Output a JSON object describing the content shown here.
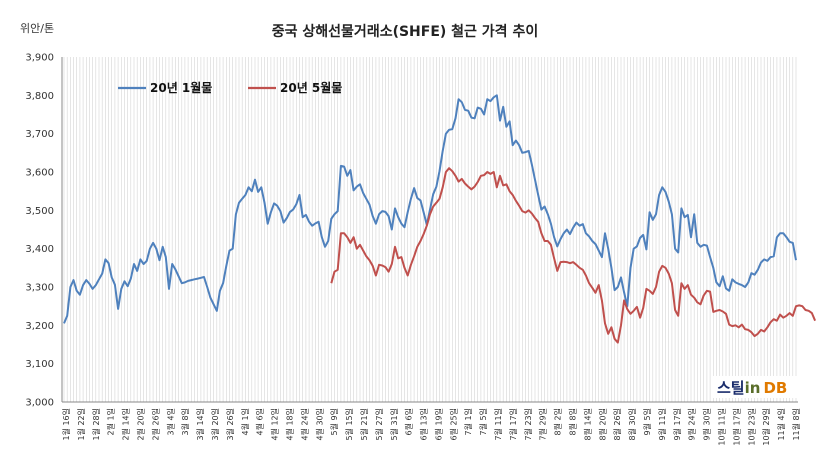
{
  "chart_data": {
    "type": "line",
    "title": "중국 상해선물거래소(SHFE) 철근 가격 추이",
    "ylabel": "위안/톤",
    "ylim": [
      3000,
      3900
    ],
    "yticks": [
      "3,000",
      "3,100",
      "3,200",
      "3,300",
      "3,400",
      "3,500",
      "3,600",
      "3,700",
      "3,800",
      "3,900"
    ],
    "xlabels": [
      "1월 16일",
      "1월 22일",
      "1월 28일",
      "2월 1일",
      "2월 14일",
      "2월 20일",
      "2월 26일",
      "3월 4일",
      "3월 8일",
      "3월 14일",
      "3월 20일",
      "3월 26일",
      "4월 1일",
      "4월 6일",
      "4월 12일",
      "4월 18일",
      "4월 24일",
      "4월 30일",
      "5월 9일",
      "5월 15일",
      "5월 21일",
      "5월 27일",
      "5월 31일",
      "6월 6일",
      "6월 13일",
      "6월 19일",
      "6월 25일",
      "7월 1일",
      "7월 5일",
      "7월 11일",
      "7월 17일",
      "7월 23일",
      "7월 29일",
      "8월 2일",
      "8월 8일",
      "8월 14일",
      "8월 20일",
      "8월 26일",
      "8월 30일",
      "9월 5일",
      "9월 11일",
      "9월 17일",
      "9월 24일",
      "9월 30일",
      "10월 11일",
      "10월 17일",
      "10월 23일",
      "10월 29일",
      "11월 4일",
      "11월 8일"
    ],
    "grid": "vertical",
    "legend_position": "top-left",
    "series": [
      {
        "name": "20년 1월물",
        "color": "#4f81bd",
        "values": [
          3205,
          3225,
          3300,
          3318,
          3290,
          3280,
          3305,
          3318,
          3308,
          3295,
          3305,
          3320,
          3335,
          3372,
          3362,
          3325,
          3306,
          3243,
          3295,
          3315,
          3302,
          3322,
          3360,
          3342,
          3372,
          3360,
          3368,
          3400,
          3415,
          3400,
          3370,
          3405,
          3378,
          3295,
          3360,
          3346,
          3328,
          3310,
          3312,
          3316,
          3318,
          3320,
          3322,
          3324,
          3326,
          3300,
          3272,
          3255,
          3238,
          3290,
          3310,
          3355,
          3395,
          3400,
          3490,
          3520,
          3530,
          3540,
          3560,
          3550,
          3580,
          3548,
          3560,
          3520,
          3465,
          3495,
          3518,
          3512,
          3498,
          3468,
          3480,
          3496,
          3502,
          3516,
          3540,
          3482,
          3488,
          3470,
          3460,
          3466,
          3470,
          3430,
          3405,
          3420,
          3478,
          3490,
          3498,
          3616,
          3614,
          3590,
          3605,
          3552,
          3562,
          3568,
          3545,
          3530,
          3515,
          3485,
          3465,
          3490,
          3498,
          3496,
          3485,
          3450,
          3505,
          3482,
          3465,
          3456,
          3495,
          3530,
          3558,
          3532,
          3526,
          3495,
          3462,
          3502,
          3542,
          3562,
          3602,
          3655,
          3700,
          3710,
          3712,
          3740,
          3790,
          3782,
          3762,
          3760,
          3742,
          3740,
          3768,
          3765,
          3750,
          3790,
          3785,
          3795,
          3800,
          3734,
          3770,
          3718,
          3732,
          3670,
          3682,
          3670,
          3650,
          3652,
          3655,
          3620,
          3580,
          3540,
          3502,
          3510,
          3490,
          3465,
          3430,
          3406,
          3425,
          3440,
          3450,
          3438,
          3455,
          3468,
          3460,
          3464,
          3440,
          3432,
          3420,
          3412,
          3395,
          3378,
          3440,
          3400,
          3350,
          3292,
          3300,
          3325,
          3286,
          3250,
          3350,
          3400,
          3406,
          3428,
          3436,
          3398,
          3495,
          3475,
          3490,
          3540,
          3560,
          3548,
          3523,
          3490,
          3400,
          3390,
          3505,
          3482,
          3488,
          3430,
          3490,
          3415,
          3405,
          3410,
          3408,
          3378,
          3350,
          3312,
          3302,
          3328,
          3296,
          3290,
          3320,
          3312,
          3308,
          3305,
          3300,
          3312,
          3336,
          3332,
          3345,
          3364,
          3372,
          3368,
          3378,
          3380,
          3430,
          3440,
          3440,
          3430,
          3418,
          3415,
          3370
        ]
      },
      {
        "name": "20년 5월물",
        "color": "#c0504d",
        "values": [
          null,
          null,
          null,
          null,
          null,
          null,
          null,
          null,
          null,
          null,
          null,
          null,
          null,
          null,
          null,
          null,
          null,
          null,
          null,
          null,
          null,
          null,
          null,
          null,
          null,
          null,
          null,
          null,
          null,
          null,
          null,
          null,
          null,
          null,
          null,
          null,
          null,
          null,
          null,
          null,
          null,
          null,
          null,
          null,
          null,
          null,
          null,
          null,
          null,
          null,
          null,
          null,
          null,
          null,
          null,
          null,
          null,
          null,
          null,
          null,
          null,
          null,
          null,
          null,
          null,
          null,
          null,
          null,
          null,
          null,
          null,
          null,
          null,
          null,
          null,
          null,
          null,
          null,
          null,
          null,
          null,
          null,
          null,
          null,
          3310,
          3340,
          3345,
          3440,
          3440,
          3430,
          3415,
          3430,
          3400,
          3410,
          3395,
          3380,
          3370,
          3355,
          3330,
          3358,
          3356,
          3352,
          3340,
          3360,
          3405,
          3375,
          3378,
          3350,
          3330,
          3358,
          3380,
          3405,
          3420,
          3438,
          3460,
          3490,
          3510,
          3520,
          3530,
          3560,
          3600,
          3610,
          3602,
          3590,
          3575,
          3582,
          3570,
          3562,
          3555,
          3562,
          3574,
          3590,
          3592,
          3600,
          3595,
          3600,
          3560,
          3590,
          3565,
          3568,
          3550,
          3540,
          3525,
          3512,
          3498,
          3494,
          3500,
          3492,
          3480,
          3470,
          3440,
          3420,
          3420,
          3410,
          3375,
          3342,
          3365,
          3366,
          3365,
          3362,
          3365,
          3358,
          3350,
          3345,
          3330,
          3310,
          3298,
          3285,
          3305,
          3265,
          3205,
          3178,
          3195,
          3165,
          3155,
          3200,
          3265,
          3242,
          3230,
          3238,
          3248,
          3220,
          3245,
          3295,
          3290,
          3282,
          3300,
          3340,
          3355,
          3350,
          3335,
          3310,
          3240,
          3225,
          3310,
          3295,
          3305,
          3280,
          3272,
          3260,
          3255,
          3278,
          3290,
          3288,
          3235,
          3238,
          3240,
          3236,
          3230,
          3202,
          3198,
          3200,
          3195,
          3202,
          3190,
          3188,
          3182,
          3172,
          3178,
          3188,
          3184,
          3195,
          3208,
          3216,
          3212,
          3228,
          3220,
          3225,
          3232,
          3225,
          3250,
          3252,
          3250,
          3240,
          3238,
          3232,
          3212
        ]
      }
    ]
  },
  "watermark": {
    "steel": "스틸",
    "in": "in",
    "db": "DB"
  }
}
